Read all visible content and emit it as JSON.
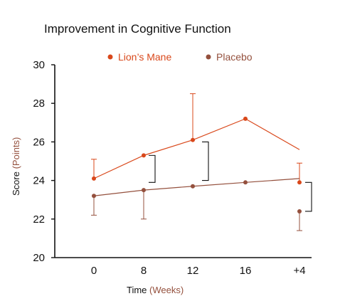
{
  "chart_data": {
    "type": "line",
    "title": "Improvement in Cognitive Function",
    "xlabel": {
      "main": "Time",
      "unit": "(Weeks)"
    },
    "ylabel": {
      "main": "Score",
      "unit": "(Points)"
    },
    "categories": [
      "0",
      "8",
      "12",
      "16",
      "+4"
    ],
    "ylim": [
      20,
      30
    ],
    "yticks": [
      "20",
      "22",
      "24",
      "26",
      "28",
      "30"
    ],
    "grid": false,
    "legend_position": "top-center",
    "series": [
      {
        "name": "Lion’s Mane",
        "color": "#d9481b",
        "values": [
          24.1,
          25.3,
          26.1,
          27.2,
          25.6
        ],
        "error_upper": [
          25.1,
          null,
          28.5,
          null,
          24.9
        ],
        "extra_point": {
          "category": "+4",
          "value": 23.9
        }
      },
      {
        "name": "Placebo",
        "color": "#94503d",
        "values": [
          23.2,
          23.5,
          23.7,
          23.9,
          24.1
        ],
        "error_lower": [
          22.2,
          22.0,
          null,
          null,
          21.4
        ],
        "extra_point": {
          "category": "+4",
          "value": 22.4
        }
      }
    ],
    "label_colors": {
      "text": "#111111",
      "unit": "#94503d"
    }
  }
}
